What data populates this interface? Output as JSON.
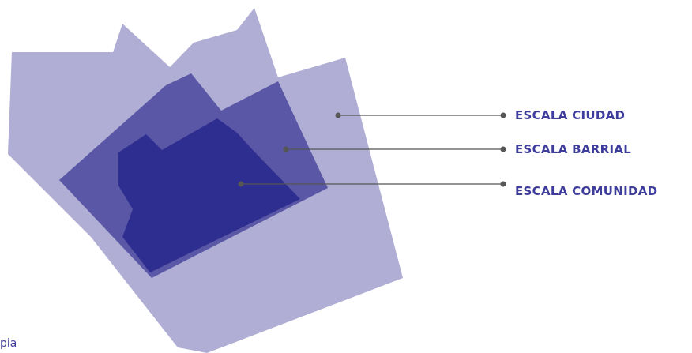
{
  "colors": {
    "city": "#b0aed4",
    "neighborhood": "#5a58a6",
    "community": "#2e2d90",
    "label": "#3f3d9c",
    "line": "#555555",
    "dot": "#555555",
    "corner_text": "#3f3d9c"
  },
  "diagram": {
    "labels": {
      "city": "ESCALA CIUDAD",
      "neighborhood": "ESCALA BARRIAL",
      "community": "ESCALA COMUNIDAD"
    }
  },
  "corner_text": "pia"
}
